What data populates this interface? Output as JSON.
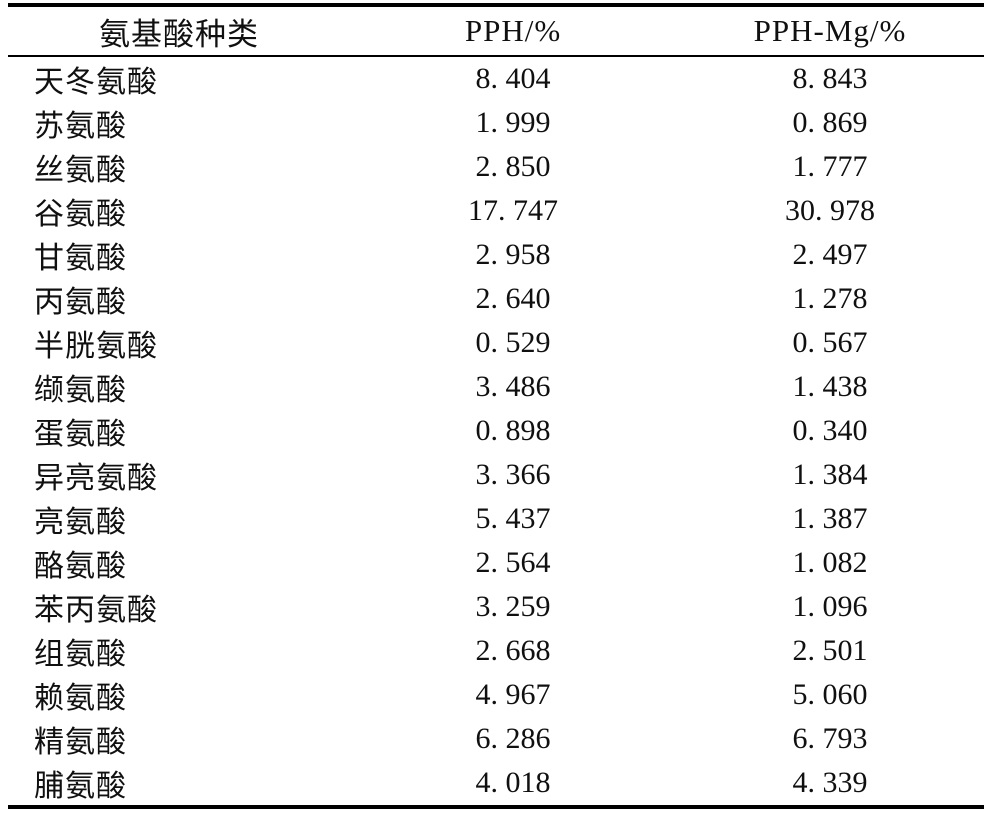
{
  "page": {
    "background_color": "#ffffff",
    "text_color": "#101010",
    "rule_color": "#000000"
  },
  "table": {
    "headers": [
      {
        "label": "氨基酸种类"
      },
      {
        "label": "PPH/%"
      },
      {
        "label": "PPH-Mg/%"
      }
    ],
    "rows": [
      {
        "amino_acid": "天冬氨酸",
        "pph": "8. 404",
        "pph_mg": "8. 843"
      },
      {
        "amino_acid": "苏氨酸",
        "pph": "1. 999",
        "pph_mg": "0. 869"
      },
      {
        "amino_acid": "丝氨酸",
        "pph": "2. 850",
        "pph_mg": "1. 777"
      },
      {
        "amino_acid": "谷氨酸",
        "pph": "17. 747",
        "pph_mg": "30. 978"
      },
      {
        "amino_acid": "甘氨酸",
        "pph": "2. 958",
        "pph_mg": "2. 497"
      },
      {
        "amino_acid": "丙氨酸",
        "pph": "2. 640",
        "pph_mg": "1. 278"
      },
      {
        "amino_acid": "半胱氨酸",
        "pph": "0. 529",
        "pph_mg": "0. 567"
      },
      {
        "amino_acid": "缬氨酸",
        "pph": "3. 486",
        "pph_mg": "1. 438"
      },
      {
        "amino_acid": "蛋氨酸",
        "pph": "0. 898",
        "pph_mg": "0. 340"
      },
      {
        "amino_acid": "异亮氨酸",
        "pph": "3. 366",
        "pph_mg": "1. 384"
      },
      {
        "amino_acid": "亮氨酸",
        "pph": "5. 437",
        "pph_mg": "1. 387"
      },
      {
        "amino_acid": "酪氨酸",
        "pph": "2. 564",
        "pph_mg": "1. 082"
      },
      {
        "amino_acid": "苯丙氨酸",
        "pph": "3. 259",
        "pph_mg": "1. 096"
      },
      {
        "amino_acid": "组氨酸",
        "pph": "2. 668",
        "pph_mg": "2. 501"
      },
      {
        "amino_acid": "赖氨酸",
        "pph": "4. 967",
        "pph_mg": "5. 060"
      },
      {
        "amino_acid": "精氨酸",
        "pph": "6. 286",
        "pph_mg": "6. 793"
      },
      {
        "amino_acid": "脯氨酸",
        "pph": "4. 018",
        "pph_mg": "4. 339"
      }
    ]
  },
  "chart_data": {
    "type": "table",
    "title": "",
    "categories": [
      "天冬氨酸",
      "苏氨酸",
      "丝氨酸",
      "谷氨酸",
      "甘氨酸",
      "丙氨酸",
      "半胱氨酸",
      "缬氨酸",
      "蛋氨酸",
      "异亮氨酸",
      "亮氨酸",
      "酪氨酸",
      "苯丙氨酸",
      "组氨酸",
      "赖氨酸",
      "精氨酸",
      "脯氨酸"
    ],
    "series": [
      {
        "name": "PPH/%",
        "values": [
          8.404,
          1.999,
          2.85,
          17.747,
          2.958,
          2.64,
          0.529,
          3.486,
          0.898,
          3.366,
          5.437,
          2.564,
          3.259,
          2.668,
          4.967,
          6.286,
          4.018
        ]
      },
      {
        "name": "PPH-Mg/%",
        "values": [
          8.843,
          0.869,
          1.777,
          30.978,
          2.497,
          1.278,
          0.567,
          1.438,
          0.34,
          1.384,
          1.387,
          1.082,
          1.096,
          2.501,
          5.06,
          6.793,
          4.339
        ]
      }
    ]
  }
}
